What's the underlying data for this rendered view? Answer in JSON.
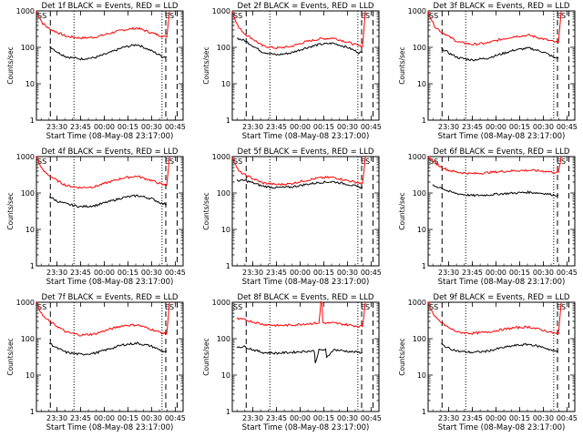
{
  "chart_data": [
    {
      "type": "line",
      "title": "Det 1f BLACK = Events, RED = LLD",
      "xlabel": "Start Time (08-May-08 23:17:00)",
      "ylabel": "Counts/sec",
      "log_y": true,
      "ylim": [
        1,
        1000
      ],
      "xlim": [
        23.283,
        24.833
      ],
      "xticks": [
        "23:30",
        "23:45",
        "00:00",
        "00:15",
        "00:30",
        "00:45"
      ],
      "yticks": [
        "1",
        "10",
        "100",
        "1000"
      ],
      "markers": [
        "SS",
        "ES"
      ],
      "series": [
        {
          "color": "#ff0000",
          "x": [
            23.28,
            23.35,
            23.42,
            23.5,
            23.6,
            23.75,
            23.9,
            24.05,
            24.2,
            24.35,
            24.5,
            24.62,
            24.66,
            24.69
          ],
          "y": [
            1000,
            450,
            320,
            260,
            200,
            180,
            190,
            240,
            300,
            340,
            250,
            200,
            190,
            1000
          ]
        },
        {
          "color": "#000000",
          "x": [
            23.42,
            23.5,
            23.6,
            23.75,
            23.9,
            24.05,
            24.2,
            24.35,
            24.5,
            24.62,
            24.66
          ],
          "y": [
            110,
            75,
            55,
            48,
            52,
            70,
            100,
            120,
            80,
            55,
            55
          ]
        }
      ]
    },
    {
      "type": "line",
      "title": "Det 2f BLACK = Events, RED = LLD",
      "xlabel": "Start Time (08-May-08 23:17:00)",
      "ylabel": "Counts/sec",
      "log_y": true,
      "ylim": [
        1,
        1000
      ],
      "xlim": [
        23.283,
        24.833
      ],
      "xticks": [
        "23:30",
        "23:45",
        "00:00",
        "00:15",
        "00:30",
        "00:45"
      ],
      "yticks": [
        "1",
        "10",
        "100",
        "1000"
      ],
      "markers": [
        "SS",
        "ES"
      ],
      "series": [
        {
          "color": "#ff0000",
          "x": [
            23.28,
            23.35,
            23.42,
            23.5,
            23.6,
            23.75,
            23.9,
            24.05,
            24.2,
            24.35,
            24.5,
            24.62,
            24.66,
            24.69
          ],
          "y": [
            1000,
            350,
            230,
            170,
            110,
            95,
            105,
            140,
            170,
            180,
            140,
            110,
            105,
            1000
          ]
        },
        {
          "color": "#000000",
          "x": [
            23.33,
            23.42,
            23.5,
            23.6,
            23.75,
            23.9,
            24.05,
            24.2,
            24.35,
            24.5,
            24.62,
            24.66
          ],
          "y": [
            180,
            150,
            110,
            75,
            62,
            70,
            95,
            120,
            130,
            100,
            72,
            72
          ]
        }
      ]
    },
    {
      "type": "line",
      "title": "Det 3f BLACK = Events, RED = LLD",
      "xlabel": "Start Time (08-May-08 23:17:00)",
      "ylabel": "Counts/sec",
      "log_y": true,
      "ylim": [
        1,
        1000
      ],
      "xlim": [
        23.283,
        24.833
      ],
      "xticks": [
        "23:30",
        "23:45",
        "00:00",
        "00:15",
        "00:30",
        "00:45"
      ],
      "yticks": [
        "1",
        "10",
        "100",
        "1000"
      ],
      "markers": [
        "SS",
        "ES"
      ],
      "series": [
        {
          "color": "#ff0000",
          "x": [
            23.28,
            23.35,
            23.42,
            23.5,
            23.6,
            23.75,
            23.9,
            24.05,
            24.2,
            24.35,
            24.5,
            24.62,
            24.66,
            24.69
          ],
          "y": [
            1000,
            380,
            270,
            200,
            140,
            120,
            130,
            165,
            200,
            215,
            170,
            140,
            135,
            1000
          ]
        },
        {
          "color": "#000000",
          "x": [
            23.42,
            23.5,
            23.6,
            23.75,
            23.9,
            24.05,
            24.2,
            24.35,
            24.5,
            24.62,
            24.66
          ],
          "y": [
            95,
            70,
            52,
            45,
            50,
            65,
            85,
            95,
            75,
            52,
            52
          ]
        }
      ]
    },
    {
      "type": "line",
      "title": "Det 4f BLACK = Events, RED = LLD",
      "xlabel": "Start Time (08-May-08 23:17:00)",
      "ylabel": "Counts/sec",
      "log_y": true,
      "ylim": [
        1,
        1000
      ],
      "xlim": [
        23.283,
        24.833
      ],
      "xticks": [
        "23:30",
        "23:45",
        "00:00",
        "00:15",
        "00:30",
        "00:45"
      ],
      "yticks": [
        "1",
        "10",
        "100",
        "1000"
      ],
      "markers": [
        "SS",
        "ES"
      ],
      "series": [
        {
          "color": "#ff0000",
          "x": [
            23.28,
            23.35,
            23.42,
            23.5,
            23.6,
            23.75,
            23.9,
            24.05,
            24.2,
            24.35,
            24.5,
            24.62,
            24.66,
            24.69
          ],
          "y": [
            1000,
            420,
            300,
            220,
            160,
            140,
            150,
            200,
            260,
            290,
            220,
            170,
            160,
            1000
          ]
        },
        {
          "color": "#000000",
          "x": [
            23.42,
            23.5,
            23.6,
            23.75,
            23.9,
            24.05,
            24.2,
            24.35,
            24.5,
            24.62,
            24.66
          ],
          "y": [
            80,
            60,
            50,
            42,
            45,
            58,
            75,
            85,
            70,
            50,
            50
          ]
        }
      ]
    },
    {
      "type": "line",
      "title": "Det 5f BLACK = Events, RED = LLD",
      "xlabel": "Start Time (08-May-08 23:17:00)",
      "ylabel": "Counts/sec",
      "log_y": true,
      "ylim": [
        1,
        1000
      ],
      "xlim": [
        23.283,
        24.833
      ],
      "xticks": [
        "23:30",
        "23:45",
        "00:00",
        "00:15",
        "00:30",
        "00:45"
      ],
      "yticks": [
        "1",
        "10",
        "100",
        "1000"
      ],
      "markers": [
        "SS",
        "ES"
      ],
      "series": [
        {
          "color": "#ff0000",
          "x": [
            23.28,
            23.35,
            23.42,
            23.5,
            23.6,
            23.75,
            23.9,
            24.05,
            24.2,
            24.35,
            24.5,
            24.62,
            24.66,
            24.69
          ],
          "y": [
            1000,
            400,
            310,
            250,
            190,
            170,
            180,
            220,
            260,
            270,
            220,
            190,
            185,
            1000
          ]
        },
        {
          "color": "#000000",
          "x": [
            23.33,
            23.42,
            23.5,
            23.6,
            23.75,
            23.9,
            24.05,
            24.2,
            24.35,
            24.5,
            24.62,
            24.66
          ],
          "y": [
            220,
            220,
            190,
            155,
            140,
            145,
            170,
            195,
            205,
            175,
            145,
            145
          ]
        }
      ]
    },
    {
      "type": "line",
      "title": "Det 6f BLACK = Events, RED = LLD",
      "xlabel": "Start Time (08-May-08 23:17:00)",
      "ylabel": "Counts/sec",
      "log_y": true,
      "ylim": [
        1,
        1000
      ],
      "xlim": [
        23.283,
        24.833
      ],
      "xticks": [
        "23:30",
        "23:45",
        "00:00",
        "00:15",
        "00:30",
        "00:45"
      ],
      "yticks": [
        "1",
        "10",
        "100",
        "1000"
      ],
      "markers": [
        "SS",
        "ES"
      ],
      "series": [
        {
          "color": "#ff0000",
          "x": [
            23.28,
            23.35,
            23.42,
            23.5,
            23.6,
            23.75,
            23.9,
            24.05,
            24.2,
            24.35,
            24.5,
            24.62,
            24.66,
            24.69
          ],
          "y": [
            1000,
            700,
            520,
            420,
            370,
            340,
            360,
            390,
            410,
            420,
            400,
            370,
            360,
            1000
          ]
        },
        {
          "color": "#000000",
          "x": [
            23.33,
            23.42,
            23.5,
            23.6,
            23.75,
            23.9,
            24.05,
            24.2,
            24.35,
            24.5,
            24.62,
            24.66
          ],
          "y": [
            160,
            140,
            110,
            95,
            85,
            88,
            95,
            100,
            105,
            98,
            88,
            88
          ]
        }
      ]
    },
    {
      "type": "line",
      "title": "Det 7f BLACK = Events, RED = LLD",
      "xlabel": "Start Time (08-May-08 23:17:00)",
      "ylabel": "Counts/sec",
      "log_y": true,
      "ylim": [
        1,
        1000
      ],
      "xlim": [
        23.283,
        24.833
      ],
      "xticks": [
        "23:30",
        "23:45",
        "00:00",
        "00:15",
        "00:30",
        "00:45"
      ],
      "yticks": [
        "1",
        "10",
        "100",
        "1000"
      ],
      "markers": [
        "SS",
        "ES"
      ],
      "series": [
        {
          "color": "#ff0000",
          "x": [
            23.28,
            23.35,
            23.42,
            23.5,
            23.6,
            23.75,
            23.9,
            24.05,
            24.2,
            24.35,
            24.5,
            24.62,
            24.66,
            24.69
          ],
          "y": [
            1000,
            420,
            300,
            220,
            150,
            125,
            135,
            180,
            230,
            240,
            180,
            140,
            135,
            1000
          ]
        },
        {
          "color": "#000000",
          "x": [
            23.42,
            23.5,
            23.6,
            23.75,
            23.9,
            24.05,
            24.2,
            24.35,
            24.5,
            24.62,
            24.66
          ],
          "y": [
            75,
            55,
            42,
            37,
            40,
            52,
            68,
            75,
            62,
            45,
            45
          ]
        }
      ]
    },
    {
      "type": "line",
      "title": "Det 8f BLACK = Events, RED = LLD",
      "xlabel": "Start Time (08-May-08 23:17:00)",
      "ylabel": "Counts/sec",
      "log_y": true,
      "ylim": [
        1,
        1000
      ],
      "xlim": [
        23.283,
        24.833
      ],
      "xticks": [
        "23:30",
        "23:45",
        "00:00",
        "00:15",
        "00:30",
        "00:45"
      ],
      "yticks": [
        "1",
        "10",
        "100",
        "1000"
      ],
      "markers": [
        "SS",
        "ES"
      ],
      "series": [
        {
          "color": "#ff0000",
          "x": [
            23.33,
            23.42,
            23.5,
            23.6,
            23.75,
            23.9,
            24.05,
            24.2,
            24.22,
            24.23,
            24.24,
            24.35,
            24.5,
            24.62,
            24.66,
            24.69
          ],
          "y": [
            350,
            330,
            290,
            250,
            230,
            235,
            255,
            270,
            1000,
            1000,
            270,
            270,
            240,
            220,
            215,
            1000
          ]
        },
        {
          "color": "#000000",
          "x": [
            23.33,
            23.42,
            23.5,
            23.6,
            23.75,
            23.9,
            24.05,
            24.15,
            24.16,
            24.2,
            24.27,
            24.28,
            24.35,
            24.5,
            24.62,
            24.66
          ],
          "y": [
            60,
            60,
            50,
            42,
            40,
            42,
            45,
            46,
            22,
            48,
            50,
            30,
            50,
            45,
            42,
            42
          ]
        }
      ]
    },
    {
      "type": "line",
      "title": "Det 9f BLACK = Events, RED = LLD",
      "xlabel": "Start Time (08-May-08 23:17:00)",
      "ylabel": "Counts/sec",
      "log_y": true,
      "ylim": [
        1,
        1000
      ],
      "xlim": [
        23.283,
        24.833
      ],
      "xticks": [
        "23:30",
        "23:45",
        "00:00",
        "00:15",
        "00:30",
        "00:45"
      ],
      "yticks": [
        "1",
        "10",
        "100",
        "1000"
      ],
      "markers": [
        "SS",
        "ES"
      ],
      "series": [
        {
          "color": "#ff0000",
          "x": [
            23.28,
            23.35,
            23.42,
            23.5,
            23.6,
            23.75,
            23.9,
            24.05,
            24.2,
            24.35,
            24.5,
            24.62,
            24.66,
            24.69
          ],
          "y": [
            1000,
            400,
            280,
            200,
            150,
            140,
            150,
            175,
            200,
            210,
            170,
            140,
            135,
            1000
          ]
        },
        {
          "color": "#000000",
          "x": [
            23.42,
            23.5,
            23.6,
            23.75,
            23.9,
            24.05,
            24.2,
            24.35,
            24.5,
            24.62,
            24.66
          ],
          "y": [
            70,
            55,
            45,
            42,
            45,
            55,
            65,
            70,
            58,
            45,
            45
          ]
        }
      ]
    }
  ]
}
